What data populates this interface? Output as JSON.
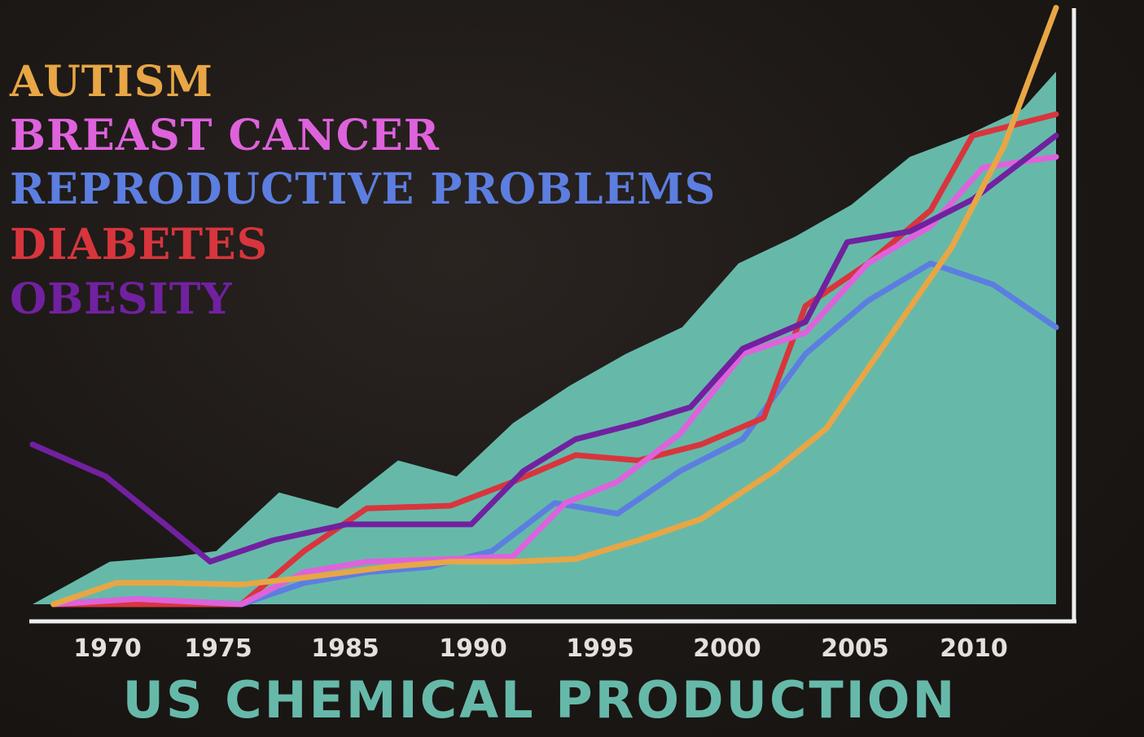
{
  "chart_data": {
    "type": "line",
    "title": "US CHEMICAL PRODUCTION",
    "xlabel": "",
    "ylabel": "",
    "xlim": [
      1965,
      2014
    ],
    "x_ticks": [
      "1970",
      "1975",
      "1985",
      "1990",
      "1995",
      "2000",
      "2005",
      "2010"
    ],
    "grid": false,
    "legend_position": "top-left",
    "area": {
      "name": "US CHEMICAL PRODUCTION",
      "color": "#66b9a9",
      "points": [
        [
          1965.0,
          0.0
        ],
        [
          1968.7,
          8.0
        ],
        [
          1972.0,
          9.0
        ],
        [
          1973.8,
          10.0
        ],
        [
          1976.8,
          21.0
        ],
        [
          1979.6,
          18.0
        ],
        [
          1982.5,
          27.0
        ],
        [
          1985.3,
          24.0
        ],
        [
          1988.0,
          34.0
        ],
        [
          1990.7,
          41.0
        ],
        [
          1993.4,
          47.0
        ],
        [
          1996.1,
          52.0
        ],
        [
          1998.8,
          64.0
        ],
        [
          2001.5,
          69.0
        ],
        [
          2004.2,
          75.0
        ],
        [
          2007.0,
          84.0
        ],
        [
          2009.7,
          88.0
        ],
        [
          2012.4,
          93.0
        ],
        [
          2014.0,
          100.0
        ]
      ]
    },
    "series": [
      {
        "name": "AUTISM",
        "color": "#e8a645",
        "points": [
          [
            1966.0,
            0.0
          ],
          [
            1969.0,
            4.0
          ],
          [
            1971.5,
            4.0
          ],
          [
            1975.0,
            3.7
          ],
          [
            1978.0,
            5.0
          ],
          [
            1982.0,
            7.0
          ],
          [
            1985.0,
            8.0
          ],
          [
            1988.0,
            8.0
          ],
          [
            1991.0,
            8.5
          ],
          [
            1994.0,
            12.0
          ],
          [
            1997.0,
            16.0
          ],
          [
            2000.5,
            25.0
          ],
          [
            2003.0,
            33.0
          ],
          [
            2006.0,
            50.0
          ],
          [
            2009.0,
            67.0
          ],
          [
            2011.5,
            86.0
          ],
          [
            2014.0,
            112.0
          ]
        ]
      },
      {
        "name": "BREAST CANCER",
        "color": "#de62dc",
        "points": [
          [
            1966.0,
            0.0
          ],
          [
            1970.0,
            1.0
          ],
          [
            1975.0,
            0.0
          ],
          [
            1978.0,
            6.0
          ],
          [
            1981.0,
            8.0
          ],
          [
            1985.0,
            8.5
          ],
          [
            1988.0,
            9.0
          ],
          [
            1990.5,
            19.0
          ],
          [
            1993.0,
            23.0
          ],
          [
            1996.0,
            32.0
          ],
          [
            1999.0,
            47.0
          ],
          [
            2002.0,
            51.0
          ],
          [
            2005.0,
            64.0
          ],
          [
            2008.0,
            71.0
          ],
          [
            2010.5,
            82.0
          ],
          [
            2014.0,
            84.0
          ]
        ]
      },
      {
        "name": "REPRODUCTIVE PROBLEMS",
        "color": "#5c7ee0",
        "points": [
          [
            1966.0,
            0.0
          ],
          [
            1970.0,
            1.0
          ],
          [
            1975.0,
            0.0
          ],
          [
            1978.0,
            4.0
          ],
          [
            1981.0,
            6.0
          ],
          [
            1984.0,
            7.0
          ],
          [
            1987.0,
            10.0
          ],
          [
            1990.0,
            19.0
          ],
          [
            1993.0,
            17.0
          ],
          [
            1996.0,
            25.0
          ],
          [
            1999.0,
            31.0
          ],
          [
            2002.0,
            47.0
          ],
          [
            2005.0,
            57.0
          ],
          [
            2008.0,
            64.0
          ],
          [
            2011.0,
            60.0
          ],
          [
            2014.0,
            52.0
          ]
        ]
      },
      {
        "name": "DIABETES",
        "color": "#d8353d",
        "points": [
          [
            1966.0,
            0.0
          ],
          [
            1970.0,
            0.0
          ],
          [
            1975.0,
            0.0
          ],
          [
            1978.0,
            10.0
          ],
          [
            1981.0,
            18.0
          ],
          [
            1985.0,
            18.5
          ],
          [
            1988.0,
            23.0
          ],
          [
            1991.0,
            28.0
          ],
          [
            1994.0,
            27.0
          ],
          [
            1997.0,
            30.0
          ],
          [
            2000.0,
            35.0
          ],
          [
            2002.0,
            56.0
          ],
          [
            2005.0,
            64.0
          ],
          [
            2008.0,
            74.0
          ],
          [
            2010.0,
            88.0
          ],
          [
            2014.0,
            92.0
          ]
        ]
      },
      {
        "name": "OBESITY",
        "color": "#7121a0",
        "points": [
          [
            1965.0,
            30.0
          ],
          [
            1968.5,
            24.0
          ],
          [
            1971.5,
            14.5
          ],
          [
            1973.5,
            8.0
          ],
          [
            1976.5,
            12.0
          ],
          [
            1980.0,
            15.0
          ],
          [
            1983.0,
            15.0
          ],
          [
            1986.0,
            15.0
          ],
          [
            1988.5,
            25.0
          ],
          [
            1991.0,
            31.0
          ],
          [
            1994.0,
            34.0
          ],
          [
            1996.5,
            37.0
          ],
          [
            1999.0,
            48.0
          ],
          [
            2002.0,
            53.0
          ],
          [
            2004.0,
            68.0
          ],
          [
            2007.0,
            70.0
          ],
          [
            2010.0,
            76.0
          ],
          [
            2014.0,
            88.0
          ]
        ]
      }
    ]
  }
}
